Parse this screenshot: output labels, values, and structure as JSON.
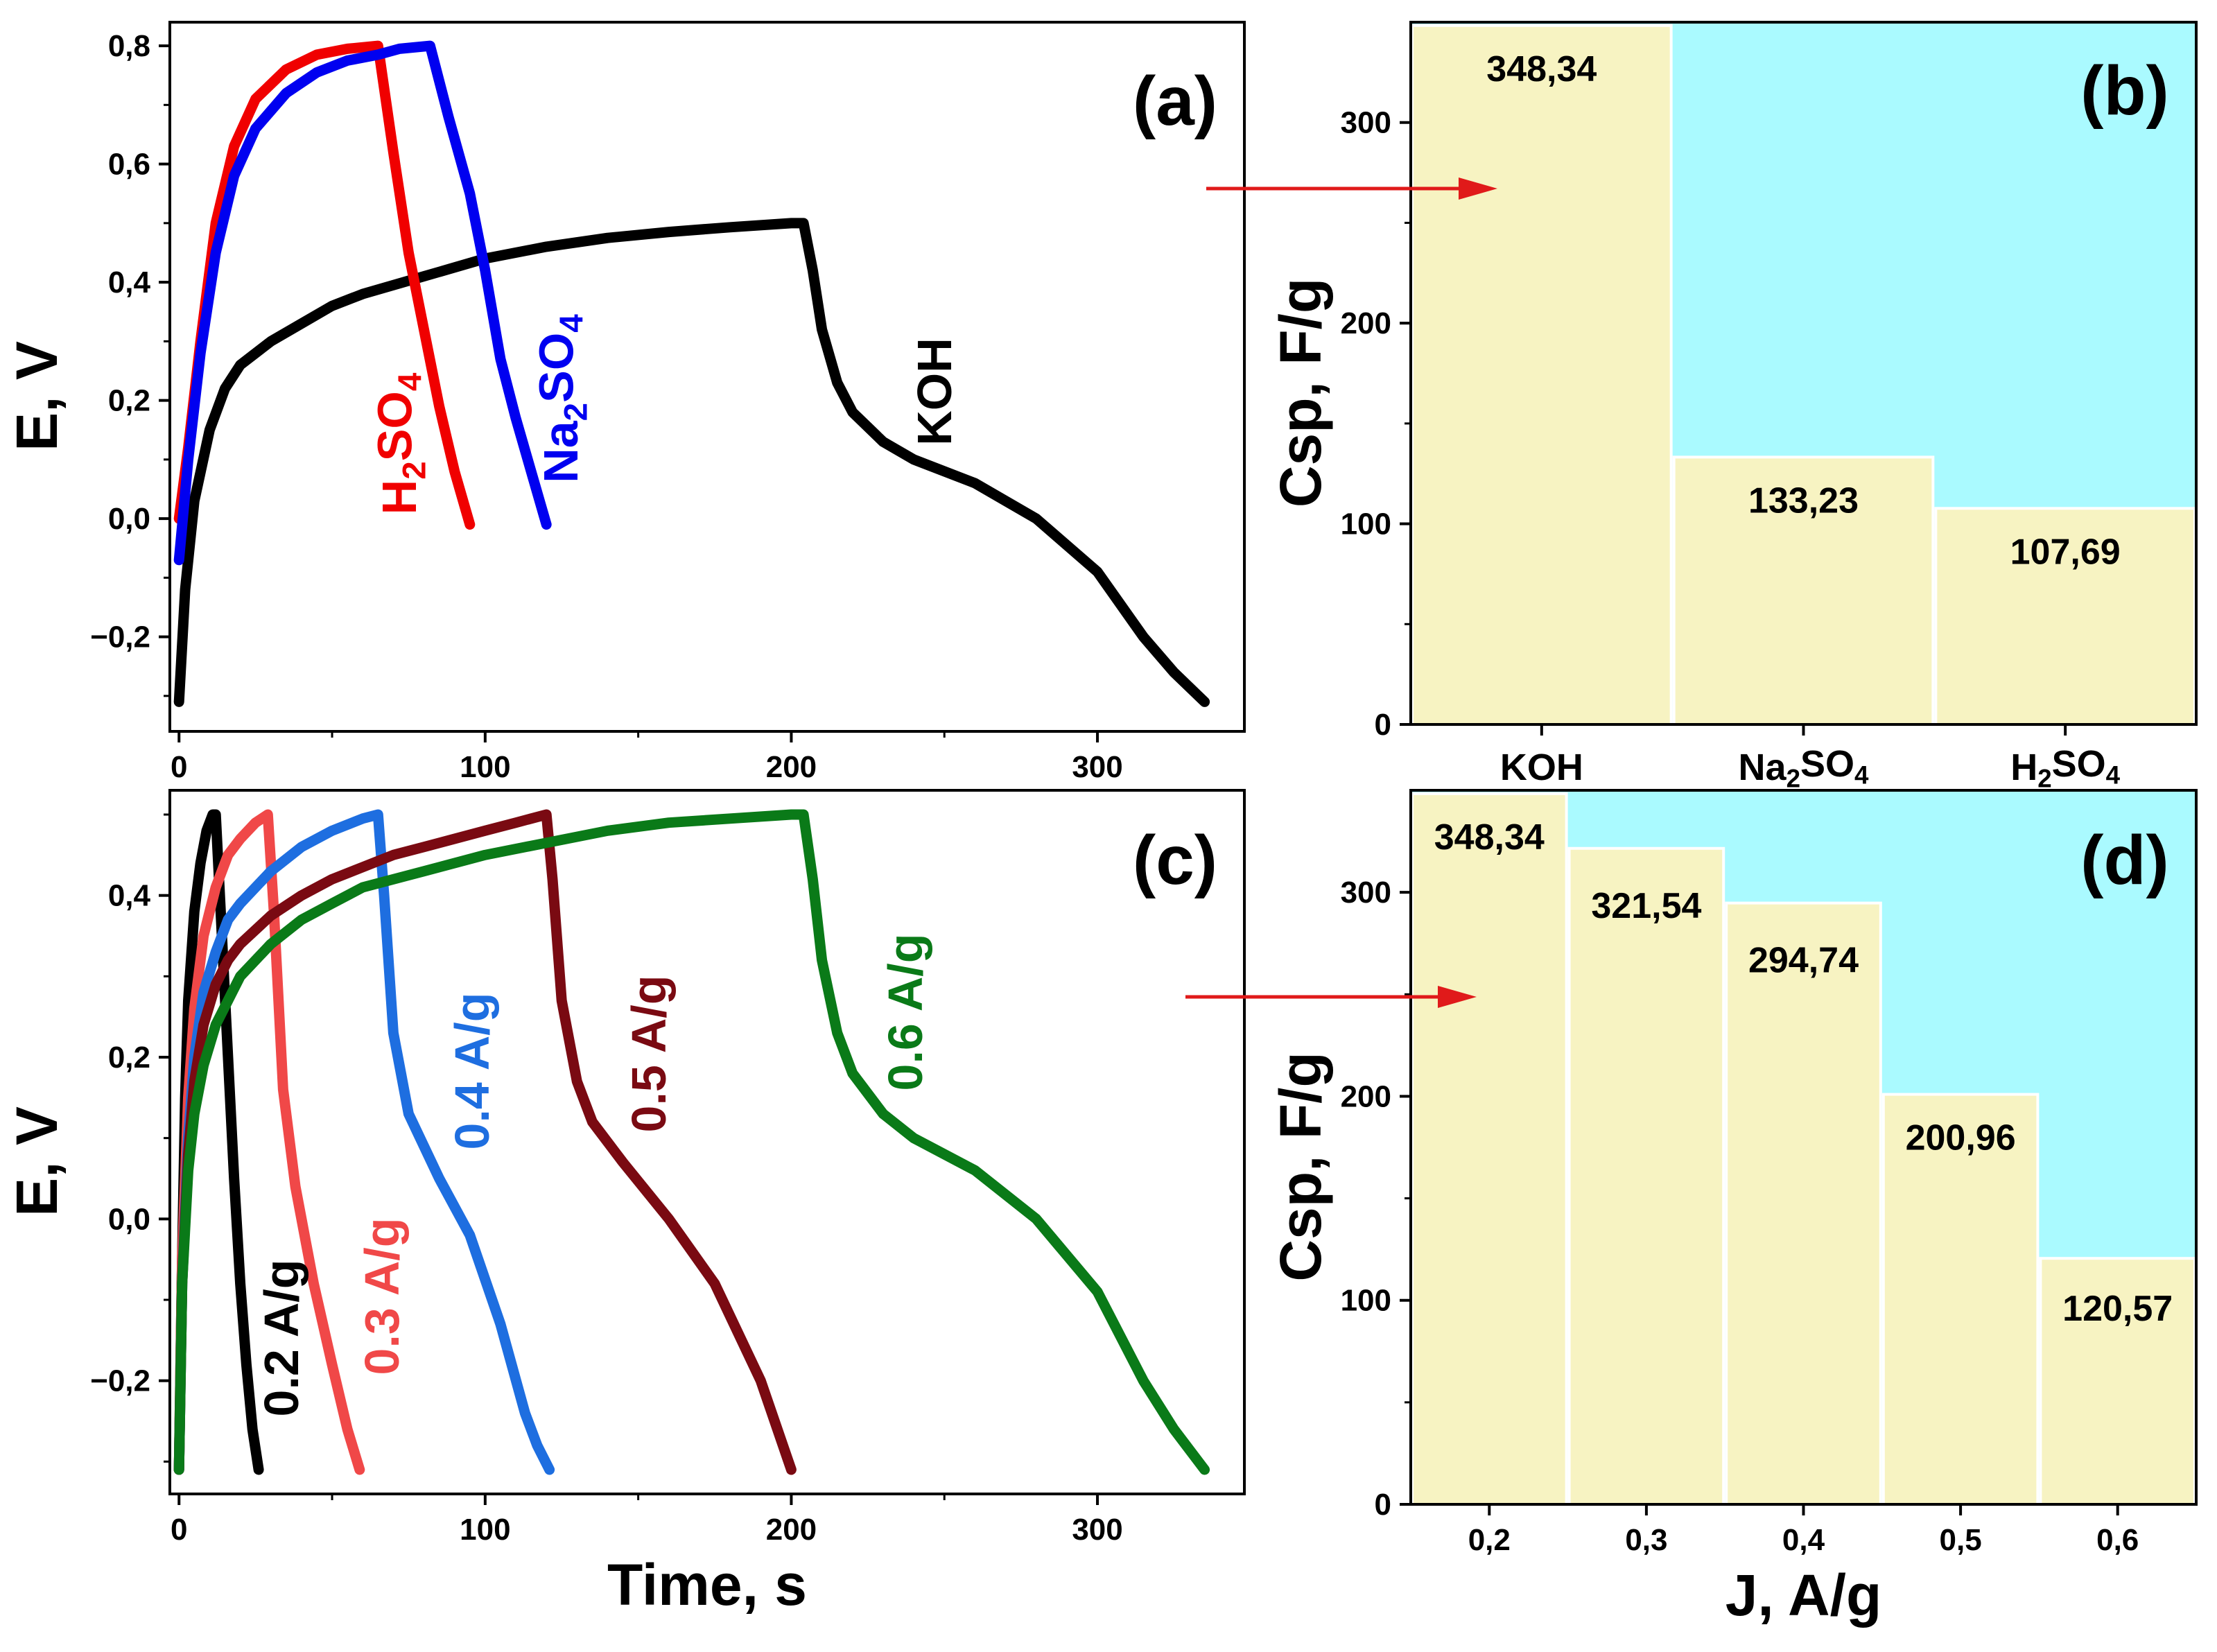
{
  "chart_data": [
    {
      "id": "a",
      "panel_label": "(a)",
      "type": "line",
      "xlabel": "",
      "ylabel": "E, V",
      "xlim": [
        -3,
        348
      ],
      "ylim": [
        -0.36,
        0.84
      ],
      "xticks": [
        0,
        100,
        200,
        300
      ],
      "xtick_labels": [
        "0",
        "100",
        "200",
        "300"
      ],
      "yticks": [
        -0.2,
        0.0,
        0.2,
        0.4,
        0.6,
        0.8
      ],
      "ytick_labels": [
        "−0,2",
        "0,0",
        "0,2",
        "0,4",
        "0,6",
        "0,8"
      ],
      "series": [
        {
          "name": "KOH",
          "label_parts": [
            "KOH"
          ],
          "color": "#000000",
          "x": [
            0,
            2,
            5,
            10,
            15,
            20,
            30,
            40,
            50,
            60,
            80,
            100,
            120,
            140,
            160,
            180,
            200,
            204,
            207,
            210,
            215,
            220,
            230,
            240,
            260,
            280,
            300,
            315,
            325,
            335
          ],
          "y": [
            -0.31,
            -0.12,
            0.03,
            0.15,
            0.22,
            0.26,
            0.3,
            0.33,
            0.36,
            0.38,
            0.41,
            0.44,
            0.46,
            0.475,
            0.485,
            0.493,
            0.5,
            0.5,
            0.42,
            0.32,
            0.23,
            0.18,
            0.13,
            0.1,
            0.06,
            0.0,
            -0.09,
            -0.2,
            -0.26,
            -0.31
          ]
        },
        {
          "name": "H2SO4",
          "label_parts": [
            "H",
            "2",
            "SO",
            "4"
          ],
          "color": "#f00000",
          "x": [
            0,
            3,
            7,
            12,
            18,
            25,
            35,
            45,
            55,
            65,
            70,
            75,
            80,
            85,
            90,
            95
          ],
          "y": [
            0.0,
            0.12,
            0.3,
            0.5,
            0.63,
            0.71,
            0.76,
            0.785,
            0.795,
            0.8,
            0.62,
            0.45,
            0.32,
            0.19,
            0.08,
            -0.01
          ]
        },
        {
          "name": "Na2SO4",
          "label_parts": [
            "Na",
            "2",
            "SO",
            "4"
          ],
          "color": "#0000f0",
          "x": [
            0,
            3,
            7,
            12,
            18,
            25,
            35,
            45,
            55,
            65,
            72,
            82,
            88,
            95,
            100,
            105,
            110,
            115,
            120
          ],
          "y": [
            -0.07,
            0.1,
            0.28,
            0.45,
            0.58,
            0.66,
            0.72,
            0.755,
            0.775,
            0.785,
            0.795,
            0.8,
            0.68,
            0.55,
            0.42,
            0.27,
            0.17,
            0.08,
            -0.01
          ]
        }
      ]
    },
    {
      "id": "b",
      "panel_label": "(b)",
      "type": "bar",
      "xlabel": "",
      "ylabel": "Csp, F/g",
      "ylim": [
        0,
        350
      ],
      "yticks": [
        0,
        100,
        200,
        300
      ],
      "ytick_labels": [
        "0",
        "100",
        "200",
        "300"
      ],
      "categories": [
        "KOH",
        "Na2SO4",
        "H2SO4"
      ],
      "category_labels": [
        [
          "KOH"
        ],
        [
          "Na",
          "2",
          "SO",
          "4"
        ],
        [
          "H",
          "2",
          "SO",
          "4"
        ]
      ],
      "values": [
        348.34,
        133.23,
        107.69
      ],
      "value_labels": [
        "348,34",
        "133,23",
        "107,69"
      ],
      "bar_color": "#f7f3c2",
      "background": "#aafaff"
    },
    {
      "id": "c",
      "panel_label": "(c)",
      "type": "line",
      "xlabel": "Time, s",
      "ylabel": "E, V",
      "xlim": [
        -3,
        348
      ],
      "ylim": [
        -0.34,
        0.53
      ],
      "xticks": [
        0,
        100,
        200,
        300
      ],
      "xtick_labels": [
        "0",
        "100",
        "200",
        "300"
      ],
      "yticks": [
        -0.2,
        0.0,
        0.2,
        0.4
      ],
      "ytick_labels": [
        "−0,2",
        "0,0",
        "0,2",
        "0,4"
      ],
      "series": [
        {
          "name": "0.2 A/g",
          "label_parts": [
            "0.2 A/g"
          ],
          "color": "#000000",
          "x": [
            0,
            1,
            2,
            3,
            5,
            7,
            9,
            11,
            12,
            14,
            16,
            18,
            20,
            22,
            24,
            26
          ],
          "y": [
            -0.31,
            -0.05,
            0.15,
            0.27,
            0.38,
            0.44,
            0.48,
            0.5,
            0.5,
            0.35,
            0.2,
            0.05,
            -0.08,
            -0.18,
            -0.26,
            -0.31
          ]
        },
        {
          "name": "0.3 A/g",
          "label_parts": [
            "0.3 A/g"
          ],
          "color": "#f04848",
          "x": [
            0,
            1,
            3,
            5,
            8,
            12,
            16,
            20,
            25,
            29,
            31,
            34,
            38,
            44,
            50,
            55,
            59
          ],
          "y": [
            -0.31,
            -0.05,
            0.15,
            0.26,
            0.35,
            0.41,
            0.45,
            0.47,
            0.49,
            0.5,
            0.38,
            0.16,
            0.04,
            -0.08,
            -0.18,
            -0.26,
            -0.31
          ]
        },
        {
          "name": "0.4 A/g",
          "label_parts": [
            "0.4 A/g"
          ],
          "color": "#1e6ee0",
          "x": [
            0,
            1,
            3,
            5,
            8,
            12,
            16,
            20,
            25,
            30,
            40,
            50,
            60,
            65,
            67,
            70,
            75,
            85,
            95,
            105,
            113,
            117,
            121
          ],
          "y": [
            -0.31,
            -0.08,
            0.1,
            0.2,
            0.28,
            0.33,
            0.37,
            0.39,
            0.41,
            0.43,
            0.46,
            0.48,
            0.495,
            0.5,
            0.4,
            0.23,
            0.13,
            0.05,
            -0.02,
            -0.13,
            -0.24,
            -0.28,
            -0.31
          ]
        },
        {
          "name": "0.5 A/g",
          "label_parts": [
            "0.5 A/g"
          ],
          "color": "#7a0a12",
          "x": [
            0,
            1,
            3,
            5,
            8,
            12,
            16,
            20,
            30,
            40,
            50,
            60,
            70,
            80,
            90,
            100,
            110,
            120,
            122,
            125,
            130,
            135,
            145,
            160,
            175,
            190,
            200
          ],
          "y": [
            -0.31,
            -0.08,
            0.08,
            0.17,
            0.24,
            0.29,
            0.32,
            0.34,
            0.375,
            0.4,
            0.42,
            0.435,
            0.45,
            0.46,
            0.47,
            0.48,
            0.49,
            0.5,
            0.42,
            0.27,
            0.17,
            0.12,
            0.07,
            0.0,
            -0.08,
            -0.2,
            -0.31
          ]
        },
        {
          "name": "0.6 A/g",
          "label_parts": [
            "0.6 A/g"
          ],
          "color": "#0a7a18",
          "x": [
            0,
            1,
            3,
            5,
            8,
            12,
            16,
            20,
            30,
            40,
            50,
            60,
            80,
            100,
            120,
            140,
            160,
            180,
            200,
            204,
            207,
            210,
            215,
            220,
            230,
            240,
            260,
            280,
            300,
            315,
            325,
            335
          ],
          "y": [
            -0.31,
            -0.08,
            0.06,
            0.13,
            0.19,
            0.24,
            0.27,
            0.3,
            0.34,
            0.37,
            0.39,
            0.41,
            0.43,
            0.45,
            0.465,
            0.48,
            0.49,
            0.495,
            0.5,
            0.5,
            0.42,
            0.32,
            0.23,
            0.18,
            0.13,
            0.1,
            0.06,
            0.0,
            -0.09,
            -0.2,
            -0.26,
            -0.31
          ]
        }
      ]
    },
    {
      "id": "d",
      "panel_label": "(d)",
      "type": "bar",
      "xlabel": "J, A/g",
      "ylabel": "Csp, F/g",
      "xlim": [
        0.15,
        0.65
      ],
      "ylim": [
        0,
        350
      ],
      "yticks": [
        0,
        100,
        200,
        300
      ],
      "ytick_labels": [
        "0",
        "100",
        "200",
        "300"
      ],
      "x": [
        0.2,
        0.3,
        0.4,
        0.5,
        0.6
      ],
      "xtick_labels": [
        "0,2",
        "0,3",
        "0,4",
        "0,5",
        "0,6"
      ],
      "values": [
        348.34,
        321.54,
        294.74,
        200.96,
        120.57
      ],
      "value_labels": [
        "348,34",
        "321,54",
        "294,74",
        "200,96",
        "120,57"
      ],
      "bar_color": "#f7f3c2",
      "background": "#aafaff"
    }
  ]
}
